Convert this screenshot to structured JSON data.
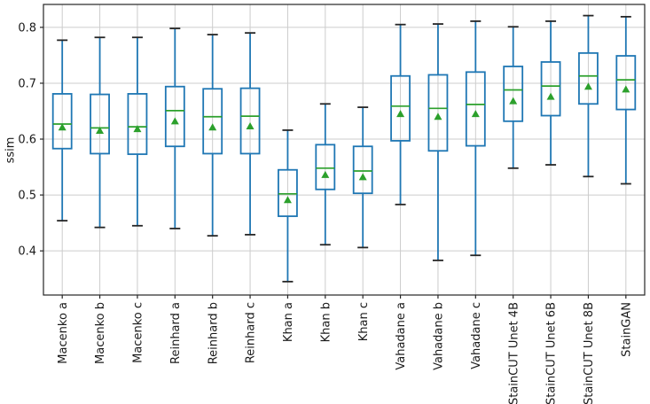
{
  "chart_data": {
    "type": "boxplot",
    "title": "",
    "xlabel": "",
    "ylabel": "ssim",
    "ylim": [
      0.321,
      0.841
    ],
    "yticks": [
      0.4,
      0.5,
      0.6,
      0.7,
      0.8
    ],
    "grid": true,
    "legend": "none",
    "mean_marker": "triangle-up",
    "categories": [
      "Macenko a",
      "Macenko b",
      "Macenko c",
      "Reinhard a",
      "Reinhard b",
      "Reinhard c",
      "Khan a",
      "Khan b",
      "Khan c",
      "Vahadane a",
      "Vahadane b",
      "Vahadane c",
      "StainCUT Unet 4B",
      "StainCUT Unet 6B",
      "StainCUT Unet 8B",
      "StainGAN"
    ],
    "boxes": [
      {
        "label": "Macenko a",
        "whisker_low": 0.454,
        "q1": 0.583,
        "median": 0.627,
        "mean": 0.621,
        "q3": 0.681,
        "whisker_high": 0.777
      },
      {
        "label": "Macenko b",
        "whisker_low": 0.442,
        "q1": 0.574,
        "median": 0.62,
        "mean": 0.615,
        "q3": 0.68,
        "whisker_high": 0.782
      },
      {
        "label": "Macenko c",
        "whisker_low": 0.445,
        "q1": 0.573,
        "median": 0.622,
        "mean": 0.618,
        "q3": 0.681,
        "whisker_high": 0.782
      },
      {
        "label": "Reinhard a",
        "whisker_low": 0.44,
        "q1": 0.587,
        "median": 0.651,
        "mean": 0.632,
        "q3": 0.694,
        "whisker_high": 0.798
      },
      {
        "label": "Reinhard b",
        "whisker_low": 0.427,
        "q1": 0.574,
        "median": 0.64,
        "mean": 0.621,
        "q3": 0.69,
        "whisker_high": 0.787
      },
      {
        "label": "Reinhard c",
        "whisker_low": 0.429,
        "q1": 0.574,
        "median": 0.641,
        "mean": 0.623,
        "q3": 0.691,
        "whisker_high": 0.79
      },
      {
        "label": "Khan a",
        "whisker_low": 0.345,
        "q1": 0.462,
        "median": 0.502,
        "mean": 0.491,
        "q3": 0.545,
        "whisker_high": 0.616
      },
      {
        "label": "Khan b",
        "whisker_low": 0.411,
        "q1": 0.51,
        "median": 0.548,
        "mean": 0.536,
        "q3": 0.59,
        "whisker_high": 0.663
      },
      {
        "label": "Khan c",
        "whisker_low": 0.406,
        "q1": 0.503,
        "median": 0.543,
        "mean": 0.532,
        "q3": 0.587,
        "whisker_high": 0.657
      },
      {
        "label": "Vahadane a",
        "whisker_low": 0.483,
        "q1": 0.597,
        "median": 0.659,
        "mean": 0.645,
        "q3": 0.713,
        "whisker_high": 0.805
      },
      {
        "label": "Vahadane b",
        "whisker_low": 0.383,
        "q1": 0.579,
        "median": 0.655,
        "mean": 0.64,
        "q3": 0.715,
        "whisker_high": 0.806
      },
      {
        "label": "Vahadane c",
        "whisker_low": 0.392,
        "q1": 0.588,
        "median": 0.662,
        "mean": 0.645,
        "q3": 0.72,
        "whisker_high": 0.811
      },
      {
        "label": "StainCUT Unet 4B",
        "whisker_low": 0.548,
        "q1": 0.632,
        "median": 0.688,
        "mean": 0.668,
        "q3": 0.73,
        "whisker_high": 0.801
      },
      {
        "label": "StainCUT Unet 6B",
        "whisker_low": 0.554,
        "q1": 0.642,
        "median": 0.695,
        "mean": 0.676,
        "q3": 0.738,
        "whisker_high": 0.811
      },
      {
        "label": "StainCUT Unet 8B",
        "whisker_low": 0.533,
        "q1": 0.663,
        "median": 0.713,
        "mean": 0.694,
        "q3": 0.754,
        "whisker_high": 0.821
      },
      {
        "label": "StainGAN",
        "whisker_low": 0.52,
        "q1": 0.653,
        "median": 0.706,
        "mean": 0.689,
        "q3": 0.749,
        "whisker_high": 0.819
      }
    ],
    "colors": {
      "box": "#1f77b4",
      "whisker": "#1f77b4",
      "cap": "#262626",
      "median": "#2ca02c",
      "mean_marker": "#2ca02c",
      "grid": "#cccccc",
      "spine": "#262626",
      "tick_label": "#1a1a1a",
      "background": "#ffffff"
    }
  }
}
